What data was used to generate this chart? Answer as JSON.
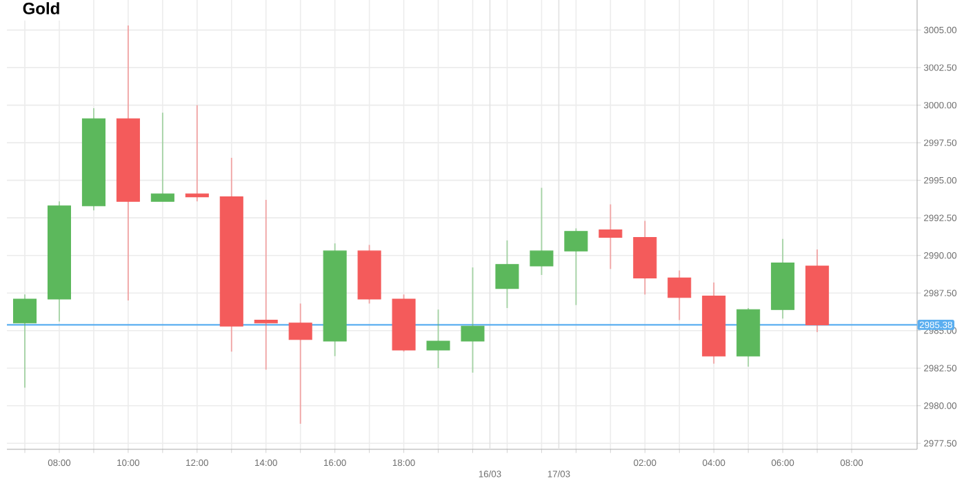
{
  "chart_data": {
    "type": "candlestick",
    "title": "Gold",
    "categories": [
      null,
      "08:00",
      null,
      "10:00",
      null,
      "12:00",
      null,
      "14:00",
      null,
      "16:00",
      null,
      "18:00",
      null,
      null,
      null,
      null,
      null,
      null,
      "02:00",
      null,
      "04:00",
      null,
      "06:00",
      null,
      "08:00"
    ],
    "ohlc": [
      [
        2985.5,
        2987.4,
        2981.2,
        2987.1
      ],
      [
        2987.1,
        2993.6,
        2985.6,
        2993.3
      ],
      [
        2993.3,
        2999.8,
        2993.0,
        2999.1
      ],
      [
        2999.1,
        3005.3,
        2987.0,
        2993.6
      ],
      [
        2993.6,
        2999.5,
        2993.6,
        2994.1
      ],
      [
        2994.1,
        3000.0,
        2993.6,
        2993.9
      ],
      [
        2993.9,
        2996.5,
        2983.6,
        2985.3
      ],
      [
        2985.7,
        2993.7,
        2982.4,
        2985.5
      ],
      [
        2985.5,
        2986.8,
        2978.8,
        2984.4
      ],
      [
        2984.3,
        2990.8,
        2983.3,
        2990.3
      ],
      [
        2990.3,
        2990.7,
        2986.8,
        2987.1
      ],
      [
        2987.1,
        2987.4,
        2983.6,
        2983.7
      ],
      [
        2983.7,
        2986.4,
        2982.5,
        2984.3
      ],
      [
        2984.3,
        2989.2,
        2982.2,
        2985.3
      ],
      [
        2987.8,
        2991.0,
        2986.5,
        2989.4
      ],
      [
        2989.3,
        2994.5,
        2988.7,
        2990.3
      ],
      [
        2990.3,
        2991.8,
        2986.7,
        2991.6
      ],
      [
        2991.7,
        2993.4,
        2989.1,
        2991.2
      ],
      [
        2991.2,
        2992.3,
        2987.4,
        2988.5
      ],
      [
        2988.5,
        2989.0,
        2985.7,
        2987.2
      ],
      [
        2987.3,
        2988.2,
        2982.8,
        2983.3
      ],
      [
        2983.3,
        2986.5,
        2982.6,
        2986.4
      ],
      [
        2986.4,
        2991.1,
        2985.8,
        2989.5
      ],
      [
        2989.3,
        2990.4,
        2984.9,
        2985.38
      ],
      null
    ],
    "colors": [
      "#5cb85c",
      "#5cb85c",
      "#5cb85c",
      "#f45b5b",
      "#5cb85c",
      "#f45b5b",
      "#f45b5b",
      "#f45b5b",
      "#f45b5b",
      "#5cb85c",
      "#f45b5b",
      "#f45b5b",
      "#5cb85c",
      "#5cb85c",
      "#5cb85c",
      "#5cb85c",
      "#5cb85c",
      "#f45b5b",
      "#f45b5b",
      "#f45b5b",
      "#f45b5b",
      "#5cb85c",
      "#5cb85c",
      "#f45b5b",
      null
    ],
    "annotations": [
      "16/03",
      "17/03"
    ],
    "ylim": [
      2977.1,
      3007
    ],
    "yticks": [
      {
        "value": 2977.5,
        "label": "2977.50"
      },
      {
        "value": 2980,
        "label": "2980.00"
      },
      {
        "value": 2982.5,
        "label": "2982.50"
      },
      {
        "value": 2985,
        "label": "2985.00"
      },
      {
        "value": 2987.5,
        "label": "2987.50"
      },
      {
        "value": 2990,
        "label": "2990.00"
      },
      {
        "value": 2992.5,
        "label": "2992.50"
      },
      {
        "value": 2995,
        "label": "2995.00"
      },
      {
        "value": 2997.5,
        "label": "2997.50"
      },
      {
        "value": 3000,
        "label": "3000.00"
      },
      {
        "value": 3002.5,
        "label": "3002.50"
      },
      {
        "value": 3005,
        "label": "3005.00"
      }
    ],
    "ref_lines": [
      {
        "axis": "y",
        "value": 2985.38,
        "label": "2985.38",
        "color": "#5aaef0"
      }
    ],
    "grid": true
  }
}
